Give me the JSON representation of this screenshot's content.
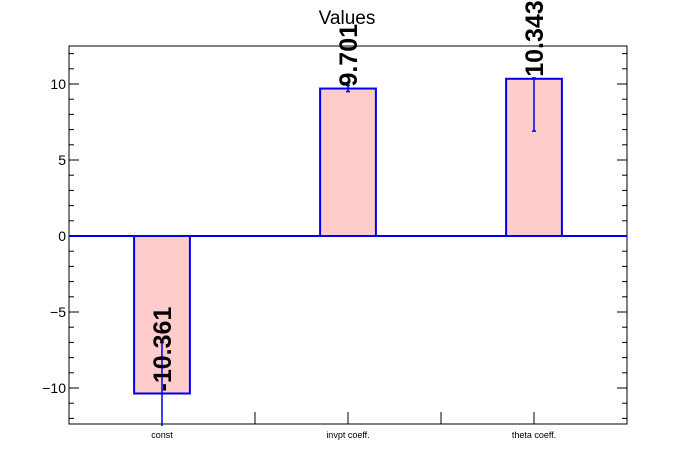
{
  "chart_data": {
    "type": "bar",
    "title": "Values",
    "categories": [
      "const",
      "invpt coeff.",
      "theta coeff."
    ],
    "values": [
      -10.361,
      9.701,
      10.343
    ],
    "value_labels": [
      "-10.361",
      "9.701",
      "10.343"
    ],
    "error_low": [
      -12.5,
      9.5,
      6.9
    ],
    "error_high": [
      -7.0,
      9.9,
      10.4
    ],
    "ylim": [
      -12.5,
      12.5
    ],
    "y_ticks": [
      -10,
      -5,
      0,
      5,
      10
    ],
    "y_tick_labels": [
      "−10",
      "−5",
      "0",
      "5",
      "10"
    ],
    "xlabel": "",
    "ylabel": "",
    "grid": false,
    "bar_fill": "#ffcccc",
    "bar_stroke": "#0000ee",
    "zero_line_color": "#0000ee"
  }
}
